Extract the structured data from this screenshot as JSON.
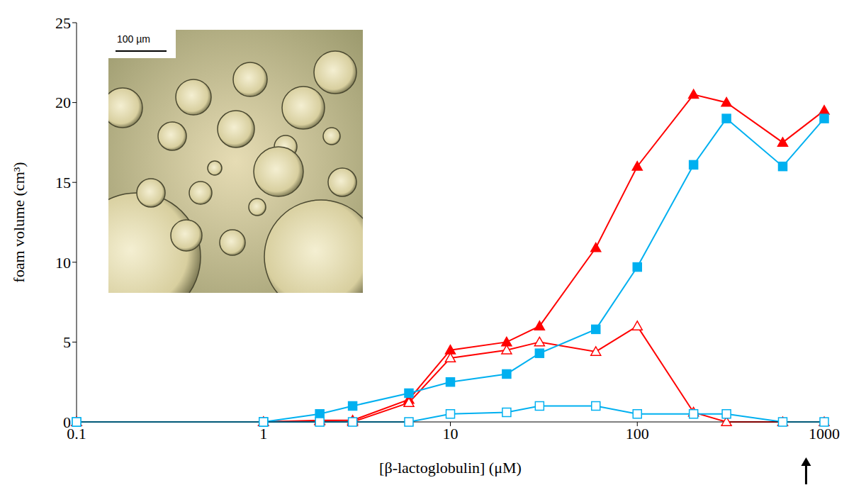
{
  "chart_data": {
    "type": "line",
    "log": "x",
    "grid": false,
    "x_label": "[β-lactoglobulin] (μM)",
    "y_label": "foam volume (cm³)",
    "xlim": [
      0.1,
      1000
    ],
    "xticks": [
      0.1,
      1,
      10,
      100,
      1000
    ],
    "ylim": [
      0,
      25
    ],
    "yticks": [
      0,
      5,
      10,
      15,
      20,
      25
    ],
    "x": [
      0.1,
      1,
      2,
      3,
      6,
      10,
      20,
      30,
      60,
      100,
      200,
      300,
      600,
      1000
    ],
    "series": [
      {
        "color": "#ff0000",
        "marker": "filled_triangle",
        "values": [
          0,
          0,
          0.1,
          0.1,
          1.4,
          4.5,
          5,
          6,
          10.9,
          16,
          20.5,
          20,
          17.5,
          19.5
        ]
      },
      {
        "color": "#ff0000",
        "marker": "open_triangle",
        "values": [
          0,
          0,
          0.05,
          0,
          1.2,
          4,
          4.5,
          5,
          4.4,
          6,
          0.6,
          0,
          0,
          0
        ]
      },
      {
        "color": "#00b0f0",
        "marker": "filled_square",
        "values": [
          0,
          0,
          0.5,
          1,
          1.8,
          2.5,
          3,
          4.3,
          5.8,
          9.7,
          16.1,
          19,
          16,
          19
        ]
      },
      {
        "color": "#00b0f0",
        "marker": "open_square",
        "values": [
          0,
          0,
          0,
          0,
          0,
          0.5,
          0.6,
          1,
          1,
          0.5,
          0.5,
          0.5,
          0,
          0
        ]
      }
    ],
    "annotations": [
      {
        "type": "arrow",
        "x": 800
      }
    ],
    "inset": {
      "scale_label": "100 µm"
    }
  }
}
